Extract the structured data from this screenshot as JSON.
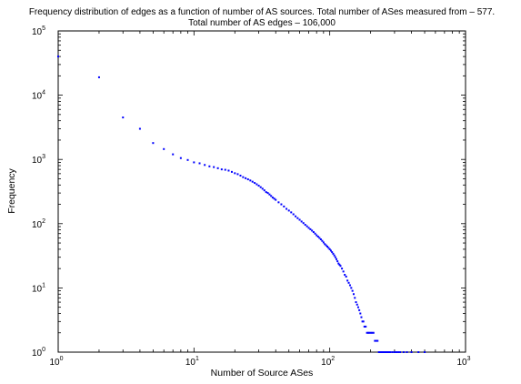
{
  "chart_data": {
    "type": "scatter",
    "title": [
      "Frequency distribution of edges as a function of number of AS sources. Total number of ASes measured from – 577.",
      "Total number of AS edges – 106,000"
    ],
    "xlabel": "Number of Source ASes",
    "ylabel": "Frequency",
    "xscale": "log",
    "yscale": "log",
    "xlim": [
      1,
      1000
    ],
    "ylim": [
      1,
      100000
    ],
    "xtick_labels": [
      {
        "base": "10",
        "exp": "0"
      },
      {
        "base": "10",
        "exp": "1"
      },
      {
        "base": "10",
        "exp": "2"
      },
      {
        "base": "10",
        "exp": "3"
      }
    ],
    "ytick_labels": [
      {
        "base": "10",
        "exp": "0"
      },
      {
        "base": "10",
        "exp": "1"
      },
      {
        "base": "10",
        "exp": "2"
      },
      {
        "base": "10",
        "exp": "3"
      },
      {
        "base": "10",
        "exp": "4"
      },
      {
        "base": "10",
        "exp": "5"
      }
    ],
    "grid": false,
    "marker_color": "#0000ff",
    "series": [
      {
        "x": [
          1,
          2,
          3,
          4,
          5,
          6,
          7,
          8,
          9,
          10,
          11,
          12,
          13,
          14,
          15,
          16,
          17,
          18,
          19,
          20,
          21,
          22,
          23,
          24,
          25,
          26,
          27,
          28,
          29,
          30,
          31,
          32,
          33,
          34,
          35,
          36,
          37,
          38,
          39,
          40,
          42,
          44,
          46,
          48,
          50,
          52,
          54,
          56,
          58,
          60,
          62,
          64,
          66,
          68,
          70,
          72,
          74,
          76,
          78,
          80,
          82,
          84,
          86,
          88,
          90,
          92,
          94,
          96,
          98,
          100,
          102,
          104,
          106,
          108,
          110,
          112,
          114,
          116,
          118,
          120,
          123,
          126,
          129,
          132,
          135,
          138,
          141,
          144,
          147,
          150,
          153,
          156,
          159,
          162,
          165,
          168,
          171,
          174,
          177,
          180,
          184,
          188,
          192,
          196,
          200,
          205,
          210,
          215,
          220,
          225,
          230,
          235,
          240,
          245,
          250,
          255,
          260,
          265,
          270,
          275,
          280,
          290,
          300,
          310,
          320,
          330,
          350,
          370,
          400,
          450,
          500
        ],
        "y": [
          40000,
          19000,
          4500,
          3000,
          1800,
          1450,
          1200,
          1050,
          980,
          900,
          870,
          820,
          780,
          760,
          730,
          700,
          690,
          670,
          640,
          610,
          590,
          560,
          530,
          510,
          490,
          470,
          450,
          430,
          410,
          390,
          370,
          350,
          330,
          310,
          300,
          285,
          270,
          255,
          245,
          235,
          215,
          200,
          185,
          170,
          160,
          150,
          140,
          130,
          122,
          115,
          108,
          102,
          96,
          91,
          86,
          82,
          78,
          74,
          70,
          66,
          63,
          60,
          57,
          54,
          51,
          48,
          46,
          44,
          42,
          40,
          38,
          36,
          34,
          32,
          30,
          28,
          26,
          24,
          23,
          22,
          20,
          18,
          16,
          15,
          13,
          12,
          11,
          10,
          9,
          8,
          7,
          6,
          5.5,
          5,
          4.5,
          4,
          3.5,
          3,
          3,
          2.5,
          2.5,
          2,
          2,
          2,
          2,
          2,
          2,
          1.5,
          1.5,
          1.5,
          1,
          1,
          1,
          1,
          1,
          1,
          1,
          1,
          1,
          1,
          1,
          1,
          1,
          1,
          1,
          1,
          1,
          1,
          1,
          1,
          1
        ]
      }
    ]
  }
}
